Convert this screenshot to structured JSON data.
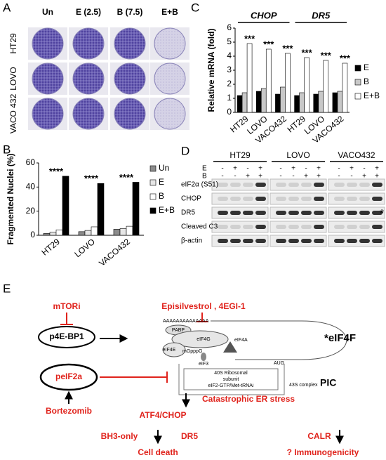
{
  "panel_labels": [
    "A",
    "B",
    "C",
    "D",
    "E"
  ],
  "panel_a": {
    "columns": [
      "Un",
      "E (2.5)",
      "B (7.5)",
      "E+B"
    ],
    "rows": [
      "HT29",
      "LOVO",
      "VACO 432"
    ]
  },
  "chart_data": [
    {
      "type": "bar",
      "y_label": "Fragmented Nuclei (%)",
      "categories": [
        "HT29",
        "LOVO",
        "VACO432"
      ],
      "series": [
        {
          "name": "Un",
          "color": "#8c8c8c",
          "values": [
            1.5,
            3,
            5
          ]
        },
        {
          "name": "E",
          "color": "#e6e6e6",
          "values": [
            2.5,
            4,
            5.5
          ]
        },
        {
          "name": "B",
          "color": "#ffffff",
          "values": [
            4.5,
            7,
            7.5
          ]
        },
        {
          "name": "E+B",
          "color": "#000000",
          "values": [
            49,
            43,
            44
          ]
        }
      ],
      "annotations": [
        "****",
        "****",
        "****"
      ],
      "ylim": [
        0,
        60
      ],
      "yticks": [
        0,
        20,
        40,
        60
      ]
    },
    {
      "type": "bar",
      "y_label": "Relative mRNA (fold)",
      "group_labels": [
        "CHOP",
        "DR5"
      ],
      "categories": [
        "HT29",
        "LOVO",
        "VACO432",
        "HT29",
        "LOVO",
        "VACO432"
      ],
      "series": [
        {
          "name": "E",
          "color": "#000000",
          "values": [
            1.2,
            1.5,
            1.3,
            1.2,
            1.3,
            1.4
          ]
        },
        {
          "name": "B",
          "color": "#c8c8c8",
          "values": [
            1.4,
            1.7,
            1.8,
            1.4,
            1.5,
            1.5
          ]
        },
        {
          "name": "E+B",
          "color": "#ffffff",
          "values": [
            4.9,
            4.5,
            4.2,
            3.9,
            3.7,
            3.5
          ]
        }
      ],
      "annotations": [
        "***",
        "***",
        "***",
        "***",
        "***",
        "***"
      ],
      "ylim": [
        0,
        6
      ],
      "yticks": [
        0,
        1,
        2,
        3,
        4,
        5,
        6
      ]
    }
  ],
  "panel_d": {
    "cell_lines": [
      "HT29",
      "LOVO",
      "VACO432"
    ],
    "treatments": [
      {
        "name": "E",
        "signs": [
          "-",
          "+",
          "-",
          "+"
        ]
      },
      {
        "name": "B",
        "signs": [
          "-",
          "-",
          "+",
          "+"
        ]
      }
    ],
    "blots": [
      "eIF2α (S51)",
      "CHOP",
      "DR5",
      "Cleaved C3",
      "β-actin"
    ],
    "marker": "*"
  },
  "panel_e": {
    "mtori": "mTORi",
    "epi": "Episilvestrol , 4EGI-1",
    "p4ebp1": "p4E-BP1",
    "eif4f": "*eIF4F",
    "peif2a": "peIF2a",
    "bortezomib": "Bortezomib",
    "er_stress": "Catastrophic ER stress",
    "atf4": "ATF4/CHOP",
    "bh3": "BH3-only",
    "dr5": "DR5",
    "cell_death": "Cell death",
    "calr": "CALR",
    "immuno": "? Immunogenicity",
    "pic": "PIC",
    "complex": "43S complex",
    "box": [
      "40S Ribosomal",
      "subunit",
      "eIF2-GTP/Met-tRNAi"
    ],
    "polya": "AAAAAAAAAAAAAA",
    "pabp": "PABP",
    "eif4g": "eIF4G",
    "eif4e": "eIF4E",
    "cap": "mGpppG",
    "eif4a": "eIF4A",
    "eif3": "eIF3",
    "aug": "AUG"
  }
}
